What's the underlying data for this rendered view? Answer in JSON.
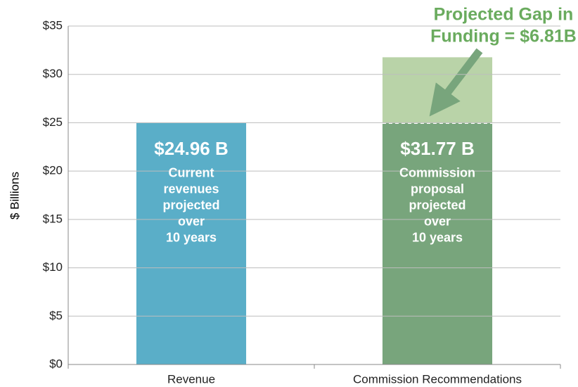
{
  "chart_data": {
    "type": "bar",
    "ylabel": "$ Billions",
    "categories": [
      "Revenue",
      "Commission Recommendations"
    ],
    "values": [
      24.96,
      31.77
    ],
    "value_labels": [
      "$24.96 B",
      "$31.77 B"
    ],
    "descriptions": [
      [
        "Current",
        "revenues",
        "projected",
        "over",
        "10 years"
      ],
      [
        "Commission",
        "proposal",
        "projected",
        "over",
        "10 years"
      ]
    ],
    "colors": [
      "#5aaec8",
      "#78a57c"
    ],
    "gap_color": "#b9d3a8",
    "annotation": {
      "lines": [
        "Projected Gap in",
        "Funding = $6.81B"
      ],
      "color": "#6aab5e"
    },
    "ylim": [
      0,
      35
    ],
    "yticks": [
      {
        "value": 0,
        "label": "$0"
      },
      {
        "value": 5,
        "label": "$5"
      },
      {
        "value": 10,
        "label": "$10"
      },
      {
        "value": 15,
        "label": "$15"
      },
      {
        "value": 20,
        "label": "$20"
      },
      {
        "value": 25,
        "label": "$25"
      },
      {
        "value": 30,
        "label": "$30"
      },
      {
        "value": 35,
        "label": "$35"
      }
    ],
    "grid": true
  }
}
